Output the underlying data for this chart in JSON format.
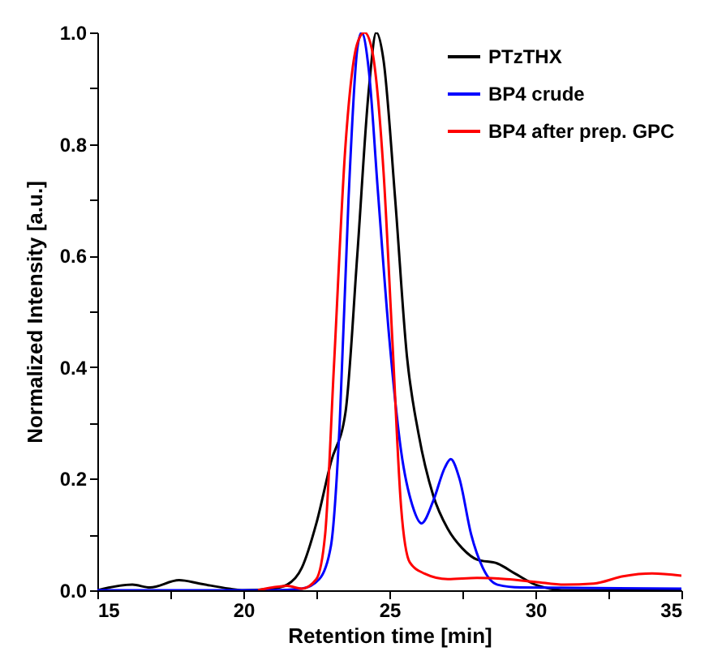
{
  "chart_data": {
    "type": "line",
    "xlabel": "Retention time [min]",
    "ylabel": "Normalized Intensity [a.u.]",
    "xlim": [
      15,
      35
    ],
    "ylim": [
      0,
      1.0
    ],
    "xticks": [
      15,
      {
        "value": 17.5,
        "label": null
      },
      20,
      {
        "value": 22.5,
        "label": null
      },
      25,
      {
        "value": 27.5,
        "label": null
      },
      30,
      {
        "value": 32.5,
        "label": null
      },
      35
    ],
    "yticks": [
      {
        "value": 0,
        "label": "0.0"
      },
      {
        "value": 0.1,
        "label": null
      },
      {
        "value": 0.2,
        "label": "0.2"
      },
      {
        "value": 0.3,
        "label": null
      },
      {
        "value": 0.4,
        "label": "0.4"
      },
      {
        "value": 0.5,
        "label": null
      },
      {
        "value": 0.6,
        "label": "0.6"
      },
      {
        "value": 0.7,
        "label": null
      },
      {
        "value": 0.8,
        "label": "0.8"
      },
      {
        "value": 0.9,
        "label": null
      },
      {
        "value": 1.0,
        "label": "1.0"
      }
    ],
    "legend": "top right",
    "grid": false,
    "series": [
      {
        "name": "PTzTHX",
        "color": "#000000",
        "x": [
          15,
          16.2,
          16.8,
          17.8,
          18.5,
          19.5,
          20,
          21,
          21.5,
          22,
          22.5,
          23,
          23.5,
          23.9,
          24.3,
          24.55,
          24.8,
          25.2,
          25.6,
          26,
          26.5,
          27,
          27.5,
          28,
          28.7,
          29.3,
          30,
          30.5,
          31,
          35
        ],
        "values": [
          0,
          0.01,
          0.005,
          0.018,
          0.012,
          0.003,
          0,
          0.003,
          0.01,
          0.04,
          0.12,
          0.23,
          0.32,
          0.6,
          0.9,
          1.0,
          0.95,
          0.7,
          0.42,
          0.28,
          0.17,
          0.11,
          0.075,
          0.055,
          0.048,
          0.03,
          0.01,
          0.003,
          0,
          0
        ]
      },
      {
        "name": "BP4 crude",
        "color": "#0000ff",
        "x": [
          15,
          21,
          22,
          22.6,
          23,
          23.3,
          23.6,
          23.9,
          24.05,
          24.3,
          24.6,
          25,
          25.4,
          25.8,
          26.1,
          26.5,
          26.9,
          27.1,
          27.4,
          27.8,
          28.2,
          28.7,
          29.5,
          35
        ],
        "values": [
          0,
          0,
          0.003,
          0.02,
          0.08,
          0.3,
          0.7,
          0.97,
          1.0,
          0.93,
          0.72,
          0.45,
          0.25,
          0.15,
          0.12,
          0.16,
          0.22,
          0.235,
          0.2,
          0.1,
          0.04,
          0.01,
          0.005,
          0.003
        ]
      },
      {
        "name": "BP4 after prep. GPC",
        "color": "#ff0000",
        "x": [
          20.5,
          21,
          21.5,
          22,
          22.5,
          22.8,
          23.1,
          23.5,
          23.9,
          24.15,
          24.4,
          24.8,
          25.1,
          25.4,
          25.7,
          26.2,
          27,
          28,
          29,
          30,
          31,
          32,
          33,
          34,
          35
        ],
        "values": [
          0,
          0.005,
          0.008,
          0.003,
          0.02,
          0.1,
          0.4,
          0.8,
          0.98,
          1.0,
          0.97,
          0.75,
          0.45,
          0.15,
          0.05,
          0.03,
          0.02,
          0.022,
          0.02,
          0.015,
          0.01,
          0.012,
          0.025,
          0.03,
          0.026
        ]
      }
    ]
  }
}
